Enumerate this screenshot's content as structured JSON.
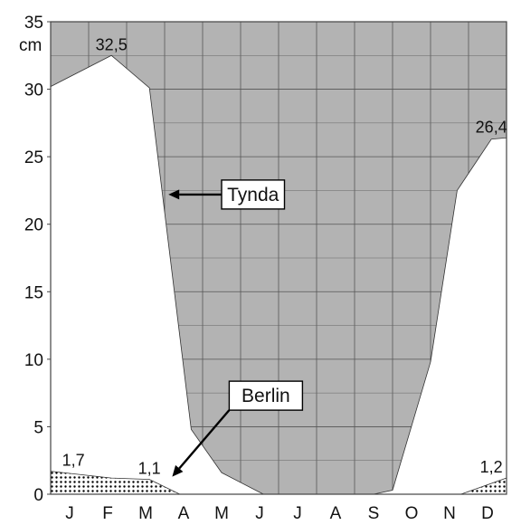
{
  "chart_data": {
    "type": "area",
    "ylabel": "cm",
    "ylim": [
      0,
      35
    ],
    "yticks": [
      0,
      5,
      10,
      15,
      20,
      25,
      30,
      35
    ],
    "categories": [
      "J",
      "F",
      "M",
      "A",
      "M",
      "J",
      "J",
      "A",
      "S",
      "O",
      "N",
      "D"
    ],
    "grid": true,
    "background_color": "#b3b3b3",
    "series": [
      {
        "name": "Tynda",
        "fill": "#ffffff",
        "points": [
          {
            "x": 0.0,
            "y": 30.2
          },
          {
            "x": 1.6,
            "y": 32.5
          },
          {
            "x": 2.6,
            "y": 30.1
          },
          {
            "x": 3.7,
            "y": 4.8
          },
          {
            "x": 4.5,
            "y": 1.6
          },
          {
            "x": 5.6,
            "y": 0.0
          },
          {
            "x": 8.5,
            "y": 0.0
          },
          {
            "x": 9.0,
            "y": 0.3
          },
          {
            "x": 10.0,
            "y": 9.8
          },
          {
            "x": 10.7,
            "y": 22.5
          },
          {
            "x": 11.6,
            "y": 26.3
          },
          {
            "x": 12.0,
            "y": 26.4
          }
        ]
      },
      {
        "name": "Berlin",
        "fill": "dotted",
        "points": [
          {
            "x": 0.0,
            "y": 1.7
          },
          {
            "x": 1.6,
            "y": 1.2
          },
          {
            "x": 2.6,
            "y": 1.1
          },
          {
            "x": 3.4,
            "y": 0.0
          },
          {
            "x": 10.8,
            "y": 0.0
          },
          {
            "x": 12.0,
            "y": 1.2
          }
        ]
      }
    ],
    "data_labels": [
      {
        "text": "32,5",
        "x": 1.6,
        "y": 32.5
      },
      {
        "text": "26,4",
        "x": 11.6,
        "y": 26.4
      },
      {
        "text": "1,7",
        "x": 0.6,
        "y": 1.7
      },
      {
        "text": "1,1",
        "x": 2.6,
        "y": 1.1
      },
      {
        "text": "1,2",
        "x": 11.6,
        "y": 1.2
      }
    ],
    "callouts": [
      {
        "text": "Tynda",
        "box_x": 4.5,
        "box_y": 22.2,
        "arrow_to_x": 3.1,
        "arrow_to_y": 22.2
      },
      {
        "text": "Berlin",
        "box_x": 4.7,
        "box_y": 7.3,
        "arrow_to_x": 3.2,
        "arrow_to_y": 1.3
      }
    ]
  }
}
